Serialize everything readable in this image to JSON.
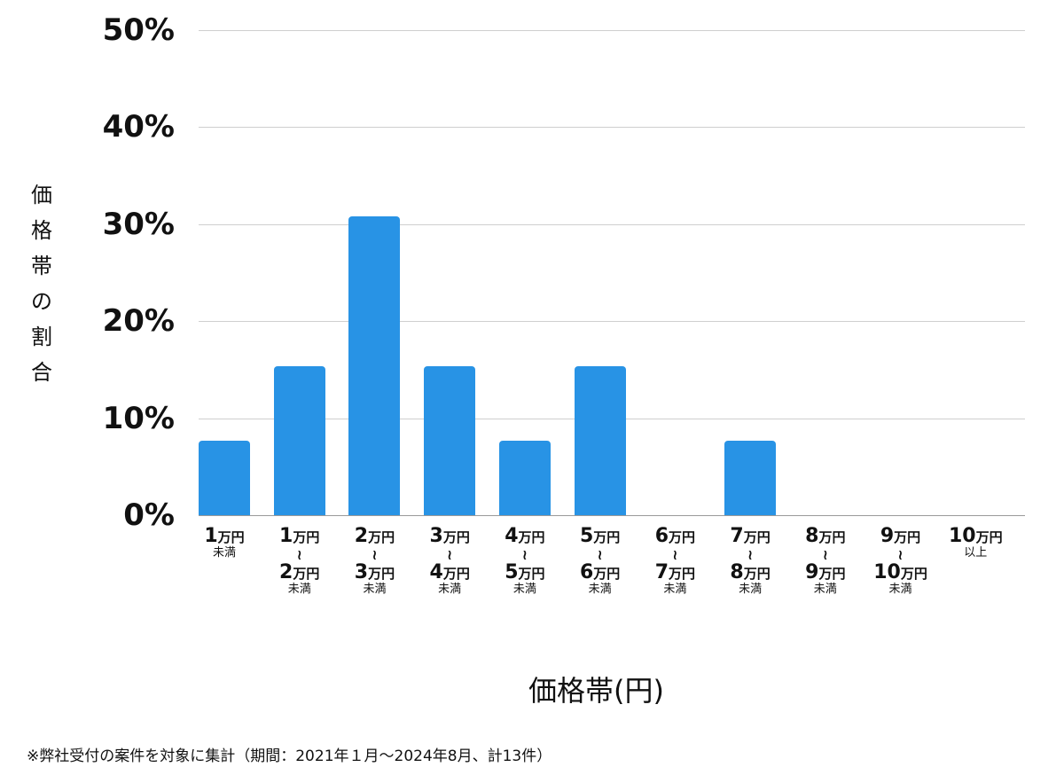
{
  "chart_data": {
    "type": "bar",
    "title": "",
    "xlabel": "価格帯(円)",
    "ylabel": "価格帯の割合",
    "ylim": [
      0,
      50
    ],
    "yticks": [
      "0%",
      "10%",
      "20%",
      "30%",
      "40%",
      "50%"
    ],
    "grid": true,
    "legend": null,
    "bar_color": "#2893e5",
    "categories": [
      "1万円未満",
      "1万円〜2万円未満",
      "2万円〜3万円未満",
      "3万円〜4万円未満",
      "4万円〜5万円未満",
      "5万円〜6万円未満",
      "6万円〜7万円未満",
      "7万円〜8万円未満",
      "8万円〜9万円未満",
      "9万円〜10万円未満",
      "10万円以上"
    ],
    "values": [
      7.7,
      15.4,
      30.8,
      15.4,
      7.7,
      15.4,
      0,
      7.7,
      0,
      0,
      0
    ],
    "counts": [
      1,
      2,
      4,
      2,
      1,
      2,
      0,
      1,
      0,
      0,
      0
    ],
    "annotation": "※弊社受付の案件を対象に集計（期間：2021年１月〜2024年8月、計13件）"
  },
  "axis": {
    "y_ticks": [
      {
        "label": "50%",
        "value": 50
      },
      {
        "label": "40%",
        "value": 40
      },
      {
        "label": "30%",
        "value": 30
      },
      {
        "label": "20%",
        "value": 20
      },
      {
        "label": "10%",
        "value": 10
      },
      {
        "label": "0%",
        "value": 0
      }
    ],
    "y_title_chars": [
      "価",
      "格",
      "帯",
      "の",
      "割",
      "合"
    ],
    "x_title": "価格帯(円)"
  },
  "x_labels": [
    {
      "from_num": "1",
      "from_unit": "万円",
      "tilde": "",
      "to_num": "",
      "to_unit": "",
      "suffix": "未満"
    },
    {
      "from_num": "1",
      "from_unit": "万円",
      "tilde": "〜",
      "to_num": "2",
      "to_unit": "万円",
      "suffix": "未満"
    },
    {
      "from_num": "2",
      "from_unit": "万円",
      "tilde": "〜",
      "to_num": "3",
      "to_unit": "万円",
      "suffix": "未満"
    },
    {
      "from_num": "3",
      "from_unit": "万円",
      "tilde": "〜",
      "to_num": "4",
      "to_unit": "万円",
      "suffix": "未満"
    },
    {
      "from_num": "4",
      "from_unit": "万円",
      "tilde": "〜",
      "to_num": "5",
      "to_unit": "万円",
      "suffix": "未満"
    },
    {
      "from_num": "5",
      "from_unit": "万円",
      "tilde": "〜",
      "to_num": "6",
      "to_unit": "万円",
      "suffix": "未満"
    },
    {
      "from_num": "6",
      "from_unit": "万円",
      "tilde": "〜",
      "to_num": "7",
      "to_unit": "万円",
      "suffix": "未満"
    },
    {
      "from_num": "7",
      "from_unit": "万円",
      "tilde": "〜",
      "to_num": "8",
      "to_unit": "万円",
      "suffix": "未満"
    },
    {
      "from_num": "8",
      "from_unit": "万円",
      "tilde": "〜",
      "to_num": "9",
      "to_unit": "万円",
      "suffix": "未満"
    },
    {
      "from_num": "9",
      "from_unit": "万円",
      "tilde": "〜",
      "to_num": "10",
      "to_unit": "万円",
      "suffix": "未満"
    },
    {
      "from_num": "10",
      "from_unit": "万円",
      "tilde": "",
      "to_num": "",
      "to_unit": "",
      "suffix": "以上"
    }
  ],
  "footnote": "※弊社受付の案件を対象に集計（期間：2021年１月〜2024年8月、計13件）"
}
